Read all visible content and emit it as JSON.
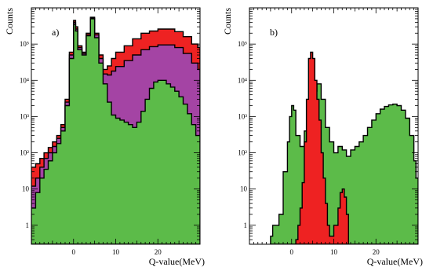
{
  "chart_data": [
    {
      "type": "area",
      "panel_label": "a)",
      "xlabel": "Q-value(MeV)",
      "ylabel": "Counts",
      "xlim": [
        -10,
        30
      ],
      "ylim": [
        0.3,
        1000000
      ],
      "log_y": true,
      "grid": false,
      "x_ticks": [
        0,
        10,
        20
      ],
      "x_tick_labels": [
        "0",
        "10",
        "20"
      ],
      "y_ticks": [
        1,
        10,
        100,
        1000,
        10000,
        100000
      ],
      "y_tick_labels": [
        "1",
        "10",
        "10²",
        "10³",
        "10⁴",
        "10⁵"
      ],
      "series": [
        {
          "color": "#ee2222",
          "points": [
            [
              -10,
              40
            ],
            [
              -9,
              50
            ],
            [
              -8,
              70
            ],
            [
              -7,
              100
            ],
            [
              -6,
              140
            ],
            [
              -5,
              200
            ],
            [
              -4,
              300
            ],
            [
              -3,
              600
            ],
            [
              -2,
              3000
            ],
            [
              -1,
              60000
            ],
            [
              0,
              450000
            ],
            [
              0.5,
              300000
            ],
            [
              1,
              90000
            ],
            [
              2,
              60000
            ],
            [
              3,
              200000
            ],
            [
              4,
              550000
            ],
            [
              5,
              200000
            ],
            [
              6,
              50000
            ],
            [
              7,
              20000
            ],
            [
              8,
              25000
            ],
            [
              9,
              40000
            ],
            [
              10,
              60000
            ],
            [
              12,
              90000
            ],
            [
              14,
              140000
            ],
            [
              16,
              200000
            ],
            [
              18,
              230000
            ],
            [
              20,
              260000
            ],
            [
              22,
              260000
            ],
            [
              24,
              220000
            ],
            [
              26,
              160000
            ],
            [
              28,
              100000
            ],
            [
              29.5,
              80000
            ],
            [
              30,
              70000
            ]
          ]
        },
        {
          "color": "#a444a4",
          "points": [
            [
              -10,
              12
            ],
            [
              -9,
              20
            ],
            [
              -8,
              40
            ],
            [
              -7,
              70
            ],
            [
              -6,
              100
            ],
            [
              -5,
              150
            ],
            [
              -4,
              250
            ],
            [
              -3,
              500
            ],
            [
              -2,
              2500
            ],
            [
              -1,
              50000
            ],
            [
              0,
              400000
            ],
            [
              0.5,
              260000
            ],
            [
              1,
              80000
            ],
            [
              2,
              55000
            ],
            [
              3,
              180000
            ],
            [
              4,
              520000
            ],
            [
              5,
              180000
            ],
            [
              6,
              40000
            ],
            [
              7,
              15000
            ],
            [
              8,
              14000
            ],
            [
              9,
              18000
            ],
            [
              10,
              24000
            ],
            [
              12,
              35000
            ],
            [
              14,
              50000
            ],
            [
              16,
              70000
            ],
            [
              18,
              85000
            ],
            [
              20,
              95000
            ],
            [
              22,
              95000
            ],
            [
              24,
              80000
            ],
            [
              26,
              55000
            ],
            [
              28,
              30000
            ],
            [
              29.5,
              20000
            ],
            [
              30,
              18000
            ]
          ]
        },
        {
          "color": "#5cbb49",
          "points": [
            [
              -10,
              3
            ],
            [
              -9,
              8
            ],
            [
              -8,
              20
            ],
            [
              -7,
              35
            ],
            [
              -6,
              60
            ],
            [
              -5,
              100
            ],
            [
              -4,
              180
            ],
            [
              -3,
              400
            ],
            [
              -2,
              2000
            ],
            [
              -1,
              40000
            ],
            [
              0,
              350000
            ],
            [
              0.5,
              230000
            ],
            [
              1,
              70000
            ],
            [
              2,
              50000
            ],
            [
              3,
              170000
            ],
            [
              4,
              500000
            ],
            [
              5,
              150000
            ],
            [
              6,
              30000
            ],
            [
              7,
              8000
            ],
            [
              8,
              2500
            ],
            [
              9,
              1100
            ],
            [
              10,
              900
            ],
            [
              11,
              800
            ],
            [
              12,
              700
            ],
            [
              13,
              600
            ],
            [
              14,
              500
            ],
            [
              15,
              700
            ],
            [
              16,
              1400
            ],
            [
              17,
              3000
            ],
            [
              18,
              6000
            ],
            [
              19,
              9000
            ],
            [
              20,
              10000
            ],
            [
              21,
              10000
            ],
            [
              22,
              8000
            ],
            [
              23,
              6500
            ],
            [
              24,
              5000
            ],
            [
              25,
              3500
            ],
            [
              26,
              2200
            ],
            [
              27,
              1200
            ],
            [
              28,
              600
            ],
            [
              29,
              300
            ],
            [
              30,
              200
            ]
          ]
        }
      ]
    },
    {
      "type": "area",
      "panel_label": "b)",
      "xlabel": "Q-value(MeV)",
      "ylabel": "Counts",
      "xlim": [
        -10,
        30
      ],
      "ylim": [
        0.3,
        1000000
      ],
      "log_y": true,
      "grid": false,
      "x_ticks": [
        0,
        10,
        20
      ],
      "x_tick_labels": [
        "0",
        "10",
        "20"
      ],
      "y_ticks": [
        1,
        10,
        100,
        1000,
        10000,
        100000
      ],
      "y_tick_labels": [
        "1",
        "10",
        "10²",
        "10³",
        "10⁴",
        "10⁵"
      ],
      "series": [
        {
          "color": "#5cbb49",
          "points": [
            [
              -5,
              0.5
            ],
            [
              -4.5,
              1
            ],
            [
              -4,
              1
            ],
            [
              -3,
              2
            ],
            [
              -2,
              30
            ],
            [
              -1,
              200
            ],
            [
              -0.5,
              1000
            ],
            [
              0,
              2000
            ],
            [
              0.5,
              1500
            ],
            [
              1,
              300
            ],
            [
              2,
              150
            ],
            [
              3,
              400
            ],
            [
              4,
              2000
            ],
            [
              5,
              5000
            ],
            [
              6,
              8000
            ],
            [
              7,
              3000
            ],
            [
              8,
              500
            ],
            [
              9,
              200
            ],
            [
              10,
              100
            ],
            [
              11,
              150
            ],
            [
              12,
              120
            ],
            [
              13,
              80
            ],
            [
              14,
              120
            ],
            [
              15,
              150
            ],
            [
              16,
              200
            ],
            [
              17,
              300
            ],
            [
              18,
              500
            ],
            [
              19,
              800
            ],
            [
              20,
              1200
            ],
            [
              21,
              1600
            ],
            [
              22,
              1900
            ],
            [
              23,
              2100
            ],
            [
              24,
              2200
            ],
            [
              25,
              2000
            ],
            [
              26,
              1500
            ],
            [
              27,
              900
            ],
            [
              28,
              300
            ],
            [
              29,
              60
            ],
            [
              29.5,
              20
            ],
            [
              30,
              10
            ]
          ]
        },
        {
          "color": "#ee2222",
          "points": [
            [
              1,
              0.4
            ],
            [
              1.5,
              1
            ],
            [
              2,
              3
            ],
            [
              2.5,
              15
            ],
            [
              3,
              200
            ],
            [
              3.5,
              3000
            ],
            [
              4,
              40000
            ],
            [
              4.5,
              60000
            ],
            [
              5,
              40000
            ],
            [
              5.5,
              10000
            ],
            [
              6,
              3000
            ],
            [
              6.5,
              800
            ],
            [
              7,
              100
            ],
            [
              7.5,
              20
            ],
            [
              8,
              4
            ],
            [
              8.5,
              1
            ],
            [
              9,
              0.5
            ],
            [
              10,
              1
            ],
            [
              11,
              3
            ],
            [
              11.5,
              8
            ],
            [
              12,
              10
            ],
            [
              12.5,
              6
            ],
            [
              13,
              2
            ],
            [
              13.5,
              0.5
            ]
          ]
        }
      ]
    }
  ]
}
